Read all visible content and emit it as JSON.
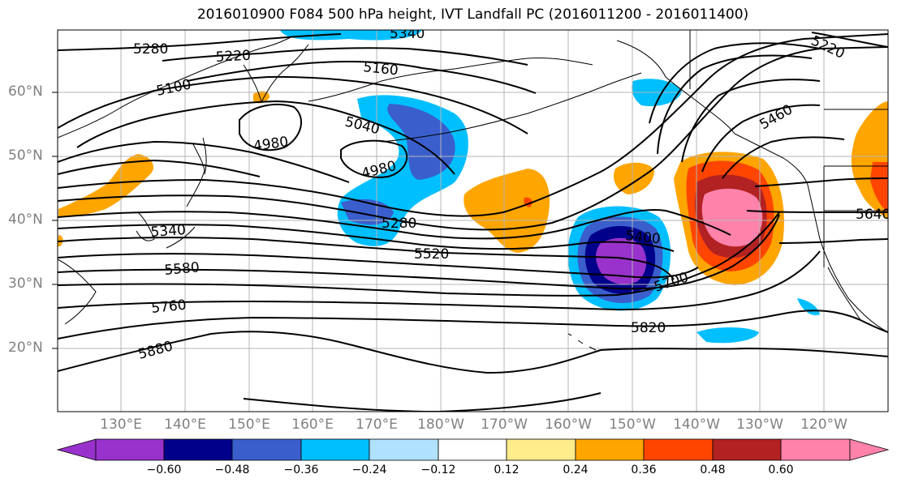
{
  "title": "2016010900 F084 500 hPa height, IVT Landfall PC (2016011200 - 2016011400)",
  "lat_labels": [
    "60°N",
    "50°N",
    "40°N",
    "30°N",
    "20°N"
  ],
  "lon_labels": [
    "130°E",
    "140°E",
    "150°E",
    "160°E",
    "170°E",
    "180°W",
    "170°W",
    "160°W",
    "150°W",
    "140°W",
    "130°W",
    "120°W"
  ],
  "contour_labels": [
    "5280",
    "5220",
    "5160",
    "5100",
    "5040",
    "4980",
    "4980",
    "5280",
    "5340",
    "5520",
    "5580",
    "5760",
    "5880",
    "5400",
    "5700",
    "5820",
    "5460",
    "5220",
    "5640",
    "5340"
  ],
  "colorbar": {
    "ticks": [
      "−0.60",
      "−0.48",
      "−0.36",
      "−0.24",
      "−0.12",
      "0.12",
      "0.24",
      "0.36",
      "0.48",
      "0.60"
    ],
    "colors": [
      "#9932cc",
      "#00008b",
      "#3a5fcd",
      "#00bfff",
      "#b0e2ff",
      "#ffffff",
      "#ffec8b",
      "#ffa500",
      "#ff4500",
      "#b22222",
      "#ff82ab",
      "#ff82ab"
    ]
  },
  "colors": {
    "gridline": "#b4b4b4",
    "contour": "#000000",
    "coast": "#000000",
    "axis_label": "#808080"
  }
}
